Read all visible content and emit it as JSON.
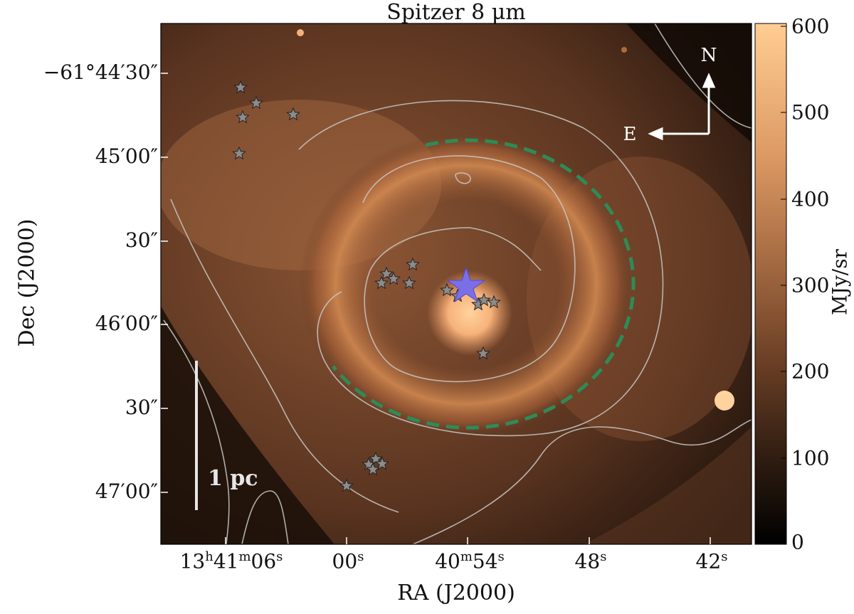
{
  "figure": {
    "title": "Spitzer 8 μm",
    "xlabel": "RA (J2000)",
    "ylabel": "Dec (J2000)",
    "colorbar_label": "MJy/sr",
    "colorbar_ticks": [
      "600",
      "500",
      "400",
      "300",
      "200",
      "100",
      "0"
    ],
    "y_ticks": [
      "−61°44′30″",
      "45′00″",
      "30″",
      "46′00″",
      "30″",
      "47′00″"
    ],
    "x_ticks": [
      {
        "base": "13",
        "h": "h",
        "m_val": "41",
        "m": "m",
        "s_val": "06",
        "s": "s"
      },
      {
        "base": "",
        "h": "",
        "m_val": "",
        "m": "",
        "s_val": "00",
        "s": "s"
      },
      {
        "base": "",
        "h": "",
        "m_val": "40",
        "m": "m",
        "s_val": "54",
        "s": "s"
      },
      {
        "base": "",
        "h": "",
        "m_val": "",
        "m": "",
        "s_val": "48",
        "s": "s"
      },
      {
        "base": "",
        "h": "",
        "m_val": "",
        "m": "",
        "s_val": "42",
        "s": "s"
      }
    ],
    "compass": {
      "north": "N",
      "east": "E"
    },
    "scalebar_label": "1 pc",
    "colors": {
      "shell_arc": "#2e8b57",
      "central_star": "#7b6fe8",
      "yso_star": "#8c8c8c",
      "contour": "#c8c8c8",
      "colormap_low": "#000000",
      "colormap_high": "#ffc890"
    },
    "colorbar_range": [
      0,
      600
    ],
    "icons": [
      "central-star-marker",
      "yso-star-marker",
      "north-arrow-icon",
      "east-arrow-icon"
    ]
  }
}
